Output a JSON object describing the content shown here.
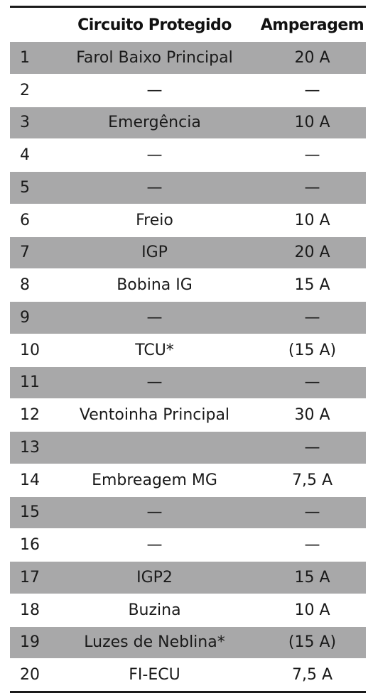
{
  "table": {
    "headers": {
      "number": "",
      "circuit": "Circuito Protegido",
      "amperage": "Amperagem"
    },
    "rows": [
      {
        "number": "1",
        "circuit": "Farol Baixo Principal",
        "amperage": "20 A"
      },
      {
        "number": "2",
        "circuit": "—",
        "amperage": "—"
      },
      {
        "number": "3",
        "circuit": "Emergência",
        "amperage": "10 A"
      },
      {
        "number": "4",
        "circuit": "—",
        "amperage": "—"
      },
      {
        "number": "5",
        "circuit": "—",
        "amperage": "—"
      },
      {
        "number": "6",
        "circuit": "Freio",
        "amperage": "10 A"
      },
      {
        "number": "7",
        "circuit": "IGP",
        "amperage": "20 A"
      },
      {
        "number": "8",
        "circuit": "Bobina IG",
        "amperage": "15 A"
      },
      {
        "number": "9",
        "circuit": "—",
        "amperage": "—"
      },
      {
        "number": "10",
        "circuit": "TCU*",
        "amperage": "(15 A)"
      },
      {
        "number": "11",
        "circuit": "—",
        "amperage": "—"
      },
      {
        "number": "12",
        "circuit": "Ventoinha Principal",
        "amperage": "30 A"
      },
      {
        "number": "13",
        "circuit": "",
        "amperage": "—"
      },
      {
        "number": "14",
        "circuit": "Embreagem MG",
        "amperage": "7,5 A"
      },
      {
        "number": "15",
        "circuit": "—",
        "amperage": "—"
      },
      {
        "number": "16",
        "circuit": "—",
        "amperage": "—"
      },
      {
        "number": "17",
        "circuit": "IGP2",
        "amperage": "15 A"
      },
      {
        "number": "18",
        "circuit": "Buzina",
        "amperage": "10 A"
      },
      {
        "number": "19",
        "circuit": "Luzes de Neblina*",
        "amperage": "(15 A)"
      },
      {
        "number": "20",
        "circuit": "FI-ECU",
        "amperage": "7,5 A"
      }
    ]
  },
  "colors": {
    "shaded_row": "#a8a8a9",
    "rule": "#1a1a1a"
  }
}
